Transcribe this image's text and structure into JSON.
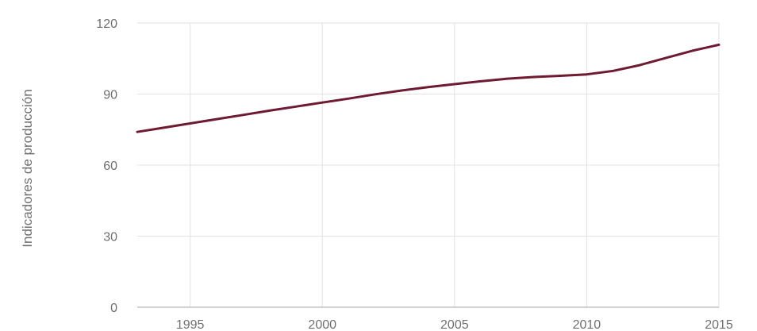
{
  "chart_data": {
    "type": "line",
    "ylabel": "Indicadores de producción",
    "xlim": [
      1993,
      2015
    ],
    "ylim": [
      0,
      120
    ],
    "x_ticks": [
      1995,
      2000,
      2005,
      2010,
      2015
    ],
    "y_ticks": [
      0,
      30,
      60,
      90,
      120
    ],
    "grid": true,
    "legend": "none",
    "series": [
      {
        "color": "#6e1a33",
        "x": [
          1993,
          1994,
          1995,
          1996,
          1997,
          1998,
          1999,
          2000,
          2001,
          2002,
          2003,
          2004,
          2005,
          2006,
          2007,
          2008,
          2009,
          2010,
          2011,
          2012,
          2013,
          2014,
          2015
        ],
        "y": [
          74,
          75.8,
          77.6,
          79.4,
          81.2,
          83,
          84.7,
          86.4,
          88.1,
          89.9,
          91.5,
          92.9,
          94.2,
          95.4,
          96.5,
          97.2,
          97.7,
          98.3,
          99.8,
          102.2,
          105.3,
          108.3,
          110.8
        ]
      }
    ]
  }
}
